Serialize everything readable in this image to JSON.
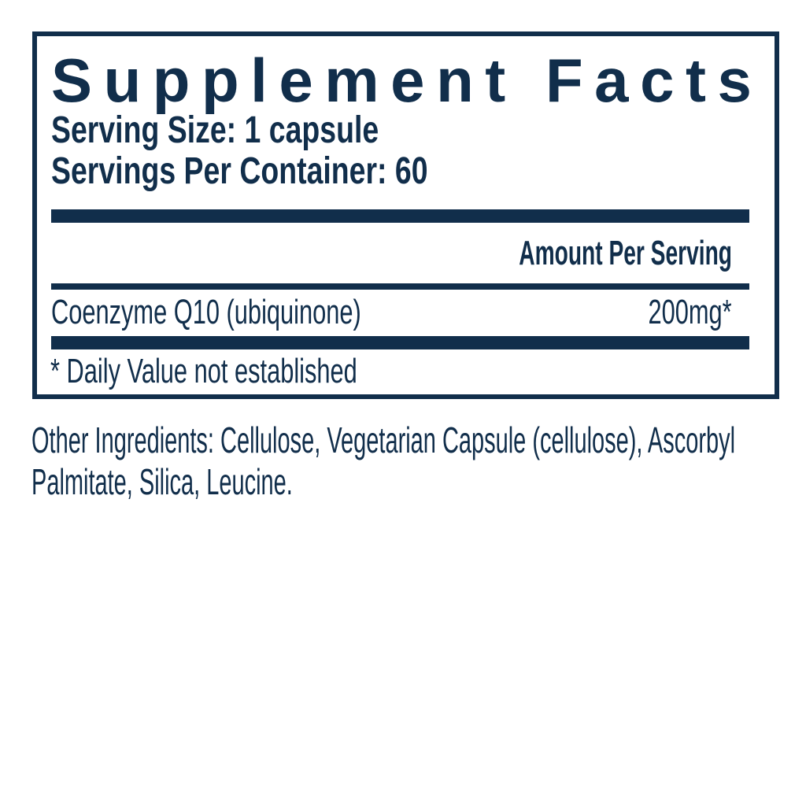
{
  "colors": {
    "navy": "#112e4b",
    "background": "#ffffff"
  },
  "supplement_facts": {
    "title": "Supplement Facts",
    "serving_size": "Serving Size: 1 capsule",
    "servings_per_container": "Servings Per Container: 60",
    "amount_per_serving_header": "Amount Per Serving",
    "rows": [
      {
        "ingredient": "Coenzyme Q10 (ubiquinone)",
        "amount": "200mg*"
      }
    ],
    "footnote": "* Daily Value not established"
  },
  "other_ingredients": {
    "lines": [
      "Other Ingredients: Cellulose, Vegetarian Capsule (cellulose), Ascorbyl",
      "Palmitate, Silica, Leucine."
    ]
  }
}
